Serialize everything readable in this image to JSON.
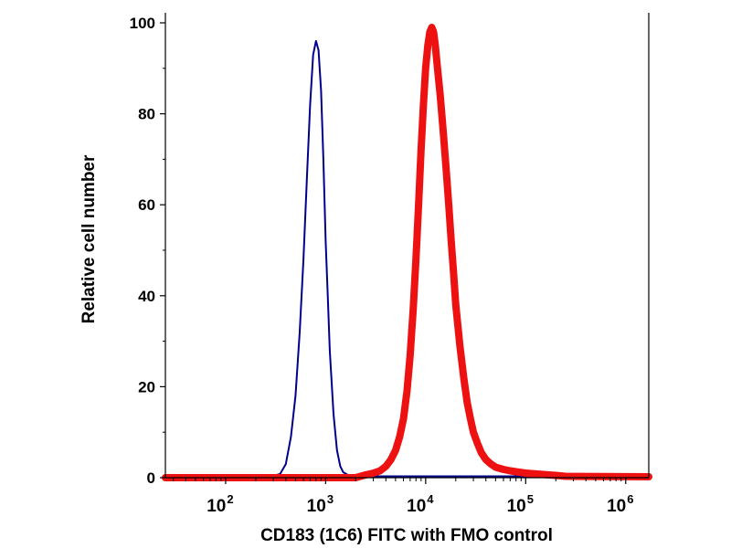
{
  "chart_data": {
    "type": "line",
    "title": "",
    "xlabel": "CD183 (1C6) FITC with FMO control",
    "ylabel": "Relative cell number",
    "x_scale": "log",
    "xlim": [
      25,
      1700000
    ],
    "ylim": [
      0,
      100
    ],
    "x_ticks": [
      {
        "value": 100,
        "base": "10",
        "exp": "2"
      },
      {
        "value": 1000,
        "base": "10",
        "exp": "3"
      },
      {
        "value": 10000,
        "base": "10",
        "exp": "4"
      },
      {
        "value": 100000,
        "base": "10",
        "exp": "5"
      },
      {
        "value": 1000000,
        "base": "10",
        "exp": "6"
      }
    ],
    "y_ticks": [
      "0",
      "20",
      "40",
      "60",
      "80",
      "100"
    ],
    "grid": false,
    "legend": "none",
    "series": [
      {
        "color": "#00008b",
        "x": [
          25,
          300,
          350,
          400,
          450,
          500,
          550,
          600,
          650,
          700,
          750,
          800,
          850,
          900,
          950,
          1000,
          1050,
          1100,
          1200,
          1300,
          1400,
          1500,
          1700,
          2000,
          1700000
        ],
        "y": [
          0.4,
          0.4,
          0.8,
          3,
          9,
          18,
          32,
          48,
          66,
          82,
          93,
          96,
          94,
          85,
          70,
          52,
          40,
          28,
          14,
          6,
          2.5,
          1.2,
          0.5,
          0.3,
          0.3
        ]
      },
      {
        "color": "#ee1111",
        "x": [
          25,
          2000,
          2500,
          3000,
          3500,
          4000,
          4500,
          5000,
          5500,
          6000,
          6500,
          7000,
          7500,
          8000,
          8500,
          9000,
          9500,
          10000,
          10500,
          11000,
          11500,
          12000,
          12500,
          13000,
          14000,
          15000,
          16000,
          17000,
          18000,
          19000,
          20000,
          22000,
          24000,
          26000,
          28000,
          30000,
          33000,
          36000,
          40000,
          45000,
          50000,
          60000,
          70000,
          80000,
          100000,
          150000,
          200000,
          250000,
          1700000
        ],
        "y": [
          0,
          0,
          0.6,
          1,
          1.5,
          2.5,
          4,
          6,
          9,
          13,
          19,
          27,
          37,
          48,
          60,
          72,
          82,
          90,
          95,
          98,
          99,
          98,
          95,
          91,
          84,
          76,
          68,
          60,
          52,
          45,
          38,
          29,
          22,
          16.5,
          13,
          10,
          7.5,
          5.5,
          4,
          3,
          2.3,
          1.8,
          1.5,
          1.3,
          1,
          0.7,
          0.5,
          0.3,
          0.2
        ]
      }
    ]
  }
}
